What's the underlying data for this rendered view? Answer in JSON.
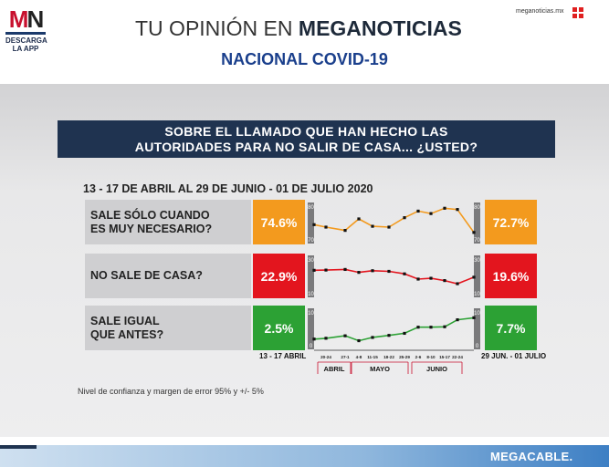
{
  "brand": {
    "logo_red": "M",
    "logo_dark": "N",
    "logo_line1": "DESCARGA",
    "logo_line2": "LA APP",
    "site": "meganoticias.mx"
  },
  "header": {
    "title_light": "TU OPINIÓN EN ",
    "title_bold": "MEGANOTICIAS",
    "subtitle": "NACIONAL COVID-19"
  },
  "question": {
    "line1": "SOBRE EL LLAMADO QUE HAN HECHO LAS",
    "line2": "AUTORIDADES PARA NO SALIR DE CASA... ¿USTED?"
  },
  "period": "13 - 17 DE ABRIL AL 29 DE JUNIO - 01 DE JULIO 2020",
  "axis": {
    "start": "13 - 17 ABRIL",
    "end": "29 JUN. - 01 JULIO"
  },
  "footer": {
    "note": "Nivel de confianza y margen de error 95% y +/- 5%",
    "sponsor": "MEGACABLE."
  },
  "colors": {
    "orange": "#f39a1e",
    "red": "#e3151e",
    "green": "#2ca134",
    "navy": "#1f3350",
    "blue": "#1a3f8c"
  },
  "chart_data": {
    "type": "line",
    "title": "",
    "x": [
      "13-17 ABR",
      "20-24 ABR",
      "27-1",
      "4-8",
      "11-15",
      "18-22",
      "25-29",
      "2-6",
      "8-10",
      "15-17",
      "22-24",
      "29 JUN-01 JUL"
    ],
    "months": [
      {
        "label": "ABRIL"
      },
      {
        "label": "MAYO"
      },
      {
        "label": "JUNIO"
      }
    ],
    "period_ticks": [
      "20-24",
      "27-1",
      "4-8",
      "11-15",
      "18-22",
      "25-29",
      "2-6",
      "8-10",
      "15-17",
      "22-24"
    ],
    "series": [
      {
        "name": "SALE SÓLO CUANDO ES MUY NECESARIO?",
        "label_line1": "SALE SÓLO CUANDO",
        "label_line2": "ES MUY NECESARIO?",
        "first": "74.6%",
        "last": "72.7%",
        "color": "orange",
        "ylim": [
          70,
          80
        ],
        "y_ticks": [
          "80",
          "70"
        ],
        "values": [
          74.6,
          74.0,
          73.2,
          76.0,
          74.2,
          74.0,
          76.3,
          77.9,
          77.3,
          78.6,
          78.3,
          72.7
        ]
      },
      {
        "name": "NO SALE DE CASA?",
        "label_line1": "NO SALE DE CASA?",
        "label_line2": "",
        "first": "22.9%",
        "last": "19.6%",
        "color": "red",
        "ylim": [
          10,
          30
        ],
        "y_ticks": [
          "30",
          "10"
        ],
        "values": [
          22.9,
          23.0,
          23.3,
          21.9,
          22.7,
          22.4,
          21.2,
          18.7,
          19.1,
          18.0,
          16.5,
          19.6
        ]
      },
      {
        "name": "SALE IGUAL QUE ANTES?",
        "label_line1": "SALE IGUAL",
        "label_line2": "QUE ANTES?",
        "first": "2.5%",
        "last": "7.7%",
        "color": "green",
        "ylim": [
          0,
          10
        ],
        "y_ticks": [
          "10",
          "0"
        ],
        "values": [
          2.5,
          2.7,
          3.3,
          2.1,
          2.9,
          3.4,
          3.9,
          5.4,
          5.4,
          5.5,
          7.2,
          7.7
        ]
      }
    ]
  }
}
